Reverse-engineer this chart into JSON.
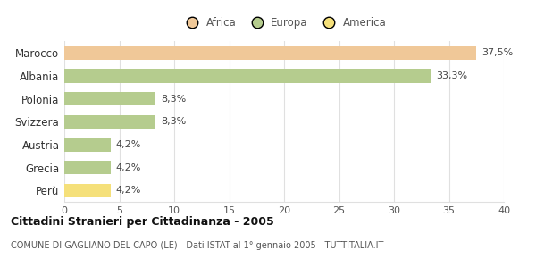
{
  "categories": [
    "Marocco",
    "Albania",
    "Polonia",
    "Svizzera",
    "Austria",
    "Grecia",
    "Perù"
  ],
  "values": [
    37.5,
    33.3,
    8.3,
    8.3,
    4.2,
    4.2,
    4.2
  ],
  "labels": [
    "37,5%",
    "33,3%",
    "8,3%",
    "8,3%",
    "4,2%",
    "4,2%",
    "4,2%"
  ],
  "colors": [
    "#f0c898",
    "#b5cc8e",
    "#b5cc8e",
    "#b5cc8e",
    "#b5cc8e",
    "#b5cc8e",
    "#f5e07a"
  ],
  "legend": [
    {
      "label": "Africa",
      "color": "#f0c898"
    },
    {
      "label": "Europa",
      "color": "#b5cc8e"
    },
    {
      "label": "America",
      "color": "#f5e07a"
    }
  ],
  "xlim": [
    0,
    40
  ],
  "xticks": [
    0,
    5,
    10,
    15,
    20,
    25,
    30,
    35,
    40
  ],
  "title": "Cittadini Stranieri per Cittadinanza - 2005",
  "subtitle": "COMUNE DI GAGLIANO DEL CAPO (LE) - Dati ISTAT al 1° gennaio 2005 - TUTTITALIA.IT",
  "background_color": "#ffffff",
  "grid_color": "#e0e0e0"
}
